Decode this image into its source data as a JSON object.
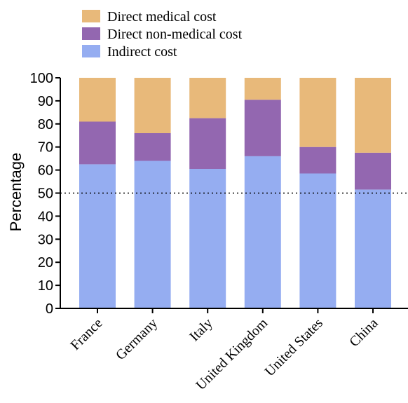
{
  "chart_data": {
    "type": "bar",
    "stacked": true,
    "categories": [
      "France",
      "Germany",
      "Italy",
      "United Kingdom",
      "United States",
      "China"
    ],
    "series": [
      {
        "name": "Indirect cost",
        "color": "#95adf1",
        "values": [
          62.5,
          64,
          60.5,
          66,
          58.5,
          51.5
        ]
      },
      {
        "name": "Direct non-medical cost",
        "color": "#9367b0",
        "values": [
          18.5,
          12,
          22,
          24.5,
          11.5,
          16
        ]
      },
      {
        "name": "Direct medical cost",
        "color": "#e8b97a",
        "values": [
          19,
          24,
          17.5,
          9.5,
          30,
          32.5
        ]
      }
    ],
    "legend_order": [
      "Direct medical cost",
      "Direct non-medical cost",
      "Indirect cost"
    ],
    "legend_position": "top-left",
    "ylabel": "Percentage",
    "ylim": [
      0,
      100
    ],
    "yticks": [
      0,
      10,
      20,
      30,
      40,
      50,
      60,
      70,
      80,
      90,
      100
    ],
    "reference_line": {
      "y": 50,
      "style": "dotted"
    },
    "grid": false
  }
}
